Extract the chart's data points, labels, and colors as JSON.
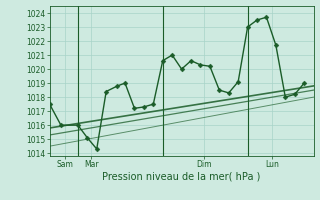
{
  "xlabel": "Pression niveau de la mer( hPa )",
  "bg_color": "#ceeae0",
  "grid_color": "#a8d4c8",
  "line_color": "#1a5c28",
  "ylim": [
    1013.8,
    1024.5
  ],
  "yticks": [
    1014,
    1015,
    1016,
    1017,
    1018,
    1019,
    1020,
    1021,
    1022,
    1023,
    1024
  ],
  "xlim": [
    0,
    14.0
  ],
  "day_labels": [
    "Sam",
    "Mar",
    "Dim",
    "Lun"
  ],
  "day_positions": [
    0.8,
    2.2,
    8.2,
    11.8
  ],
  "vline_positions": [
    1.5,
    6.0,
    10.5
  ],
  "series1_x": [
    0.0,
    0.6,
    1.5,
    2.0,
    2.5,
    3.0,
    3.6,
    4.0,
    4.5,
    5.0,
    5.5,
    6.0,
    6.5,
    7.0,
    7.5,
    8.0,
    8.5,
    9.0,
    9.5,
    10.0,
    10.5,
    11.0,
    11.5,
    12.0,
    12.5,
    13.0,
    13.5
  ],
  "series1_y": [
    1017.5,
    1016.0,
    1016.0,
    1015.1,
    1014.3,
    1018.4,
    1018.8,
    1019.0,
    1017.2,
    1017.3,
    1017.5,
    1020.6,
    1021.0,
    1020.0,
    1020.6,
    1020.3,
    1020.2,
    1018.5,
    1018.3,
    1019.1,
    1023.0,
    1023.5,
    1023.7,
    1021.7,
    1018.0,
    1018.2,
    1019.0
  ],
  "trend1_x": [
    0.0,
    14.0
  ],
  "trend1_y": [
    1015.8,
    1018.8
  ],
  "trend2_x": [
    0.0,
    14.0
  ],
  "trend2_y": [
    1015.3,
    1018.5
  ],
  "trend3_x": [
    0.0,
    14.0
  ],
  "trend3_y": [
    1014.5,
    1018.0
  ]
}
